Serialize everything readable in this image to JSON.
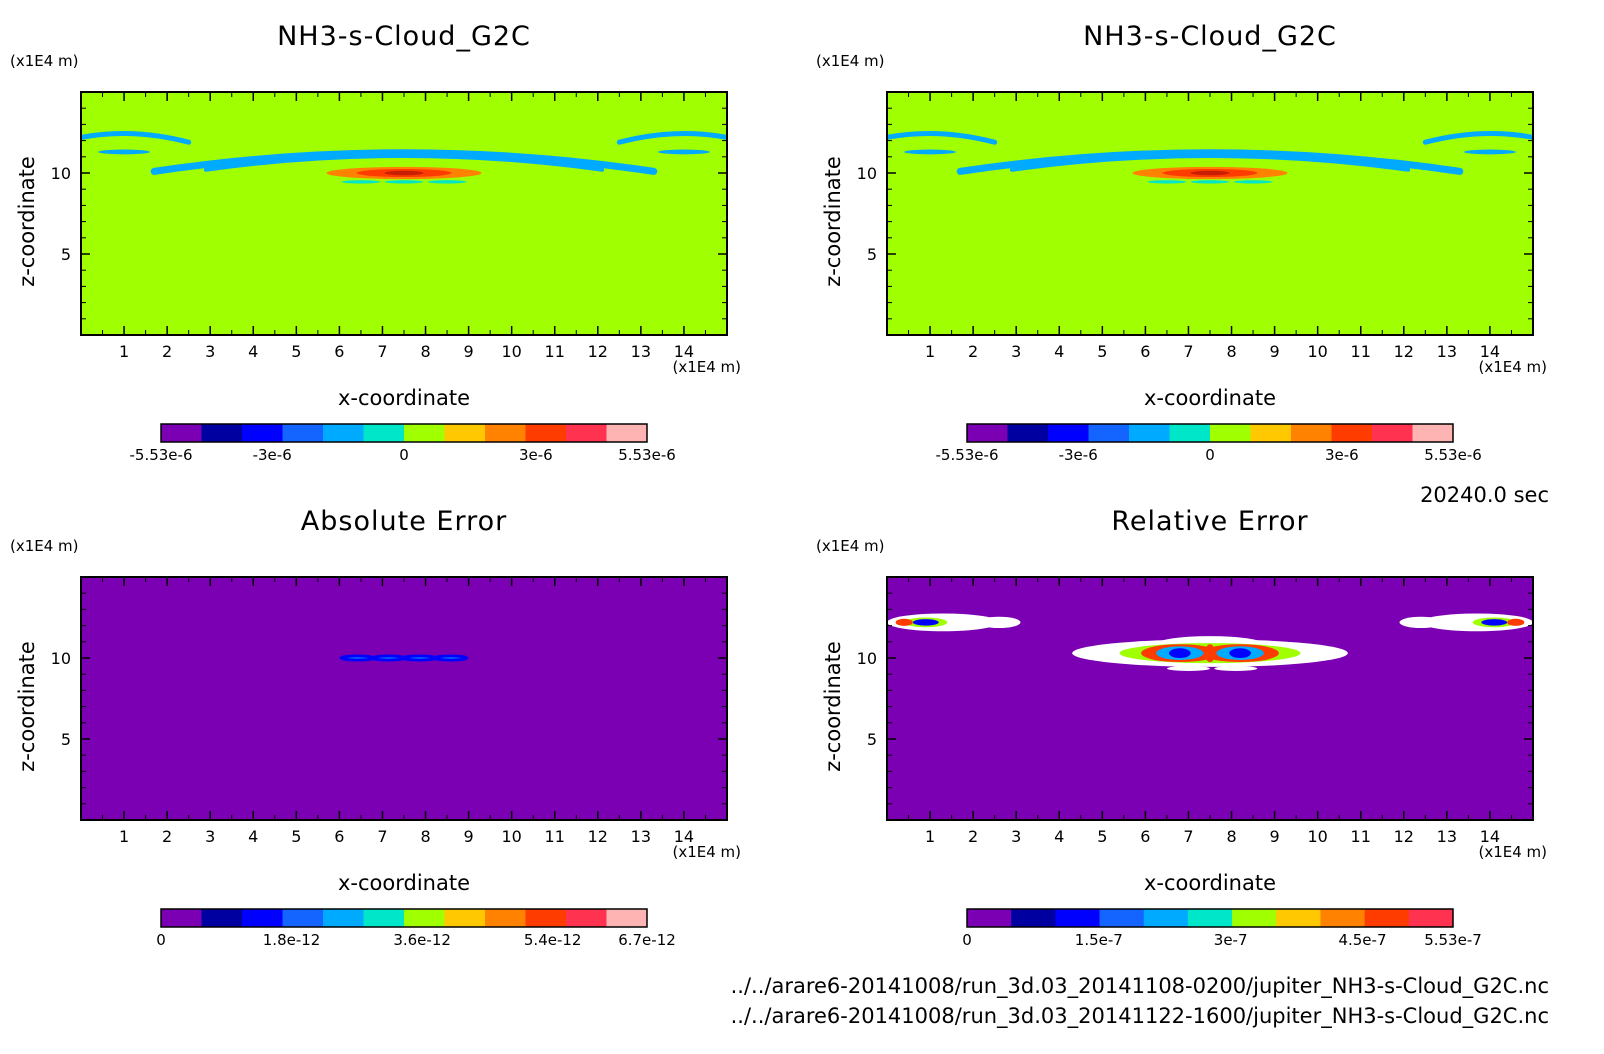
{
  "time_label": "20240.0 sec",
  "files": [
    "../../arare6-20141008/run_3d.03_20141108-0200/jupiter_NH3-s-Cloud_G2C.nc",
    "../../arare6-20141008/run_3d.03_20141122-1600/jupiter_NH3-s-Cloud_G2C.nc"
  ],
  "chart_data": [
    {
      "type": "heatmap",
      "title": "NH3-s-Cloud_G2C",
      "xlabel": "x-coordinate",
      "ylabel": "z-coordinate",
      "x_unit": "(x1E4 m)",
      "y_unit": "(x1E4 m)",
      "xlim": [
        0,
        15
      ],
      "ylim": [
        0,
        15
      ],
      "x_ticks": [
        1,
        2,
        3,
        4,
        5,
        6,
        7,
        8,
        9,
        10,
        11,
        12,
        13,
        14
      ],
      "y_ticks": [
        5,
        10
      ],
      "background_value": 0,
      "features": [
        {
          "kind": "arc",
          "cx": 7.5,
          "cz": 10.6,
          "value": -1.5e-06
        },
        {
          "kind": "core",
          "cx": 7.5,
          "cz": 10.0,
          "value": 3e-06
        },
        {
          "kind": "edge-patch",
          "cx": 0.0,
          "cz": 12.2,
          "value": -1.5e-06
        },
        {
          "kind": "edge-patch",
          "cx": 15.0,
          "cz": 12.2,
          "value": -1.5e-06
        }
      ],
      "colorbar": {
        "min": -5.53e-06,
        "max": 5.53e-06,
        "colors": [
          "#7b00b4",
          "#0000a0",
          "#0000ff",
          "#1464ff",
          "#00aaff",
          "#00e6c8",
          "#a0ff00",
          "#ffc800",
          "#ff8200",
          "#ff3c00",
          "#ff3250",
          "#ffb4b4"
        ],
        "tick_labels": [
          "-5.53e-6",
          "-3e-6",
          "0",
          "3e-6",
          "5.53e-6"
        ],
        "tick_values": [
          -5.53e-06,
          -3e-06,
          0,
          3e-06,
          5.53e-06
        ]
      }
    },
    {
      "type": "heatmap",
      "title": "NH3-s-Cloud_G2C",
      "xlabel": "x-coordinate",
      "ylabel": "z-coordinate",
      "x_unit": "(x1E4 m)",
      "y_unit": "(x1E4 m)",
      "xlim": [
        0,
        15
      ],
      "ylim": [
        0,
        15
      ],
      "x_ticks": [
        1,
        2,
        3,
        4,
        5,
        6,
        7,
        8,
        9,
        10,
        11,
        12,
        13,
        14
      ],
      "y_ticks": [
        5,
        10
      ],
      "background_value": 0,
      "features": [
        {
          "kind": "arc",
          "cx": 7.5,
          "cz": 10.6,
          "value": -1.5e-06
        },
        {
          "kind": "core",
          "cx": 7.5,
          "cz": 10.0,
          "value": 3e-06
        },
        {
          "kind": "edge-patch",
          "cx": 0.0,
          "cz": 12.2,
          "value": -1.5e-06
        },
        {
          "kind": "edge-patch",
          "cx": 15.0,
          "cz": 12.2,
          "value": -1.5e-06
        }
      ],
      "colorbar": {
        "min": -5.53e-06,
        "max": 5.53e-06,
        "colors": [
          "#7b00b4",
          "#0000a0",
          "#0000ff",
          "#1464ff",
          "#00aaff",
          "#00e6c8",
          "#a0ff00",
          "#ffc800",
          "#ff8200",
          "#ff3c00",
          "#ff3250",
          "#ffb4b4"
        ],
        "tick_labels": [
          "-5.53e-6",
          "-3e-6",
          "0",
          "3e-6",
          "5.53e-6"
        ],
        "tick_values": [
          -5.53e-06,
          -3e-06,
          0,
          3e-06,
          5.53e-06
        ]
      }
    },
    {
      "type": "heatmap",
      "title": "Absolute Error",
      "xlabel": "x-coordinate",
      "ylabel": "z-coordinate",
      "x_unit": "(x1E4 m)",
      "y_unit": "(x1E4 m)",
      "xlim": [
        0,
        15
      ],
      "ylim": [
        0,
        15
      ],
      "x_ticks": [
        1,
        2,
        3,
        4,
        5,
        6,
        7,
        8,
        9,
        10,
        11,
        12,
        13,
        14
      ],
      "y_ticks": [
        5,
        10
      ],
      "background_value": 0,
      "features": [
        {
          "kind": "beads",
          "cx": 7.5,
          "cz": 10.0,
          "value": 1e-12
        }
      ],
      "colorbar": {
        "min": 0,
        "max": 6.7e-12,
        "colors": [
          "#7b00b4",
          "#0000a0",
          "#0000ff",
          "#1464ff",
          "#00aaff",
          "#00e6c8",
          "#a0ff00",
          "#ffc800",
          "#ff8200",
          "#ff3c00",
          "#ff3250",
          "#ffb4b4"
        ],
        "tick_labels": [
          "0",
          "1.8e-12",
          "3.6e-12",
          "5.4e-12",
          "6.7e-12"
        ],
        "tick_values": [
          0,
          1.8e-12,
          3.6e-12,
          5.4e-12,
          6.7e-12
        ]
      }
    },
    {
      "type": "heatmap",
      "title": "Relative Error",
      "xlabel": "x-coordinate",
      "ylabel": "z-coordinate",
      "x_unit": "(x1E4 m)",
      "y_unit": "(x1E4 m)",
      "xlim": [
        0,
        15
      ],
      "ylim": [
        0,
        15
      ],
      "x_ticks": [
        1,
        2,
        3,
        4,
        5,
        6,
        7,
        8,
        9,
        10,
        11,
        12,
        13,
        14
      ],
      "y_ticks": [
        5,
        10
      ],
      "background_value": 0,
      "features": [
        {
          "kind": "blob",
          "cx": 7.5,
          "cz": 10.3,
          "value": 4.5e-07
        },
        {
          "kind": "edge-blob",
          "cx": 0.0,
          "cz": 12.2,
          "value": 3e-07
        },
        {
          "kind": "edge-blob",
          "cx": 15.0,
          "cz": 12.2,
          "value": 3e-07
        }
      ],
      "colorbar": {
        "min": 0,
        "max": 5.53e-07,
        "colors": [
          "#7b00b4",
          "#0000a0",
          "#0000ff",
          "#1464ff",
          "#00aaff",
          "#00e6c8",
          "#a0ff00",
          "#ffc800",
          "#ff8200",
          "#ff3c00",
          "#ff3250"
        ],
        "tick_labels": [
          "0",
          "1.5e-7",
          "3e-7",
          "4.5e-7",
          "5.53e-7"
        ],
        "tick_values": [
          0,
          1.5e-07,
          3e-07,
          4.5e-07,
          5.53e-07
        ]
      }
    }
  ]
}
